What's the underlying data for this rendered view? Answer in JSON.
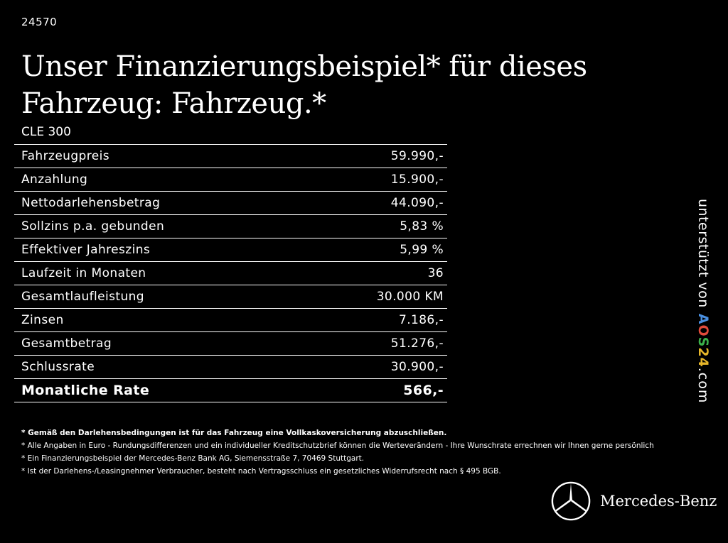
{
  "ref_number": "24570",
  "headline": "Unser Finanzierungsbeispiel* für dieses Fahrzeug: Fahrzeug.*",
  "model": "CLE 300",
  "table": {
    "rows": [
      {
        "label": "Fahrzeugpreis",
        "value": "59.990,-"
      },
      {
        "label": "Anzahlung",
        "value": "15.900,-"
      },
      {
        "label": "Nettodarlehensbetrag",
        "value": "44.090,-"
      },
      {
        "label": "Sollzins p.a. gebunden",
        "value": "5,83 %"
      },
      {
        "label": "Effektiver Jahreszins",
        "value": "5,99 %"
      },
      {
        "label": "Laufzeit in Monaten",
        "value": "36"
      },
      {
        "label": "Gesamtlaufleistung",
        "value": "30.000 KM"
      },
      {
        "label": "Zinsen",
        "value": "7.186,-"
      },
      {
        "label": "Gesamtbetrag",
        "value": "51.276,-"
      },
      {
        "label": "Schlussrate",
        "value": "30.900,-"
      }
    ],
    "total": {
      "label": "Monatliche Rate",
      "value": "566,-"
    }
  },
  "notes": [
    "* Gemäß den Darlehensbedingungen ist für das Fahrzeug eine Vollkaskoversicherung abzuschließen.",
    "* Alle Angaben in Euro - Rundungsdifferenzen und ein individueller Kreditschutzbrief können die Werteverändern - Ihre Wunschrate errechnen wir Ihnen gerne persönlich",
    "* Ein Finanzierungsbeispiel der Mercedes-Benz Bank AG, Siemensstraße 7, 70469 Stuttgart.",
    "* Ist der Darlehens-/Leasingnehmer Verbraucher, besteht nach Vertragsschluss ein gesetzliches Widerrufsrecht nach § 495 BGB."
  ],
  "sidebar": {
    "supported_by": "unterstützt von",
    "aos_parts": [
      "A",
      "O",
      "S",
      "24"
    ],
    "aos_suffix": ".com"
  },
  "brand": {
    "name": "Mercedes-Benz",
    "logo_icon": "mercedes-star-icon"
  },
  "colors": {
    "background": "#000000",
    "text": "#ffffff",
    "aos_a": "#4a8fe0",
    "aos_o": "#e14b3b",
    "aos_s": "#3bb14b",
    "aos_24": "#e6b62a"
  }
}
